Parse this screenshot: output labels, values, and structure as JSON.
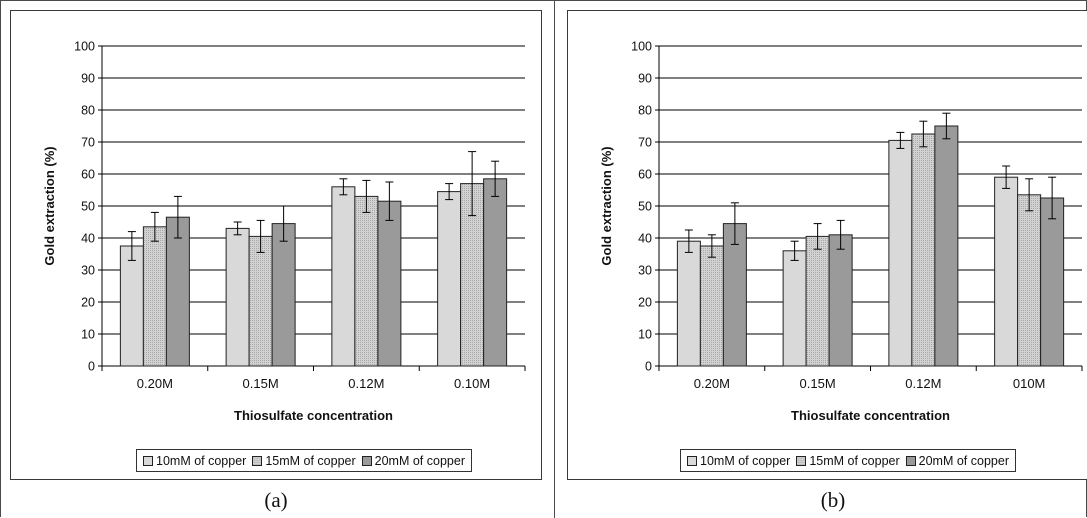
{
  "panels": [
    {
      "caption": "(a)",
      "legend": [
        "10mM of copper",
        "15mM of copper",
        "20mM of copper"
      ]
    },
    {
      "caption": "(b)",
      "legend": [
        "10mM of copper",
        "15mM of copper",
        "20mM of copper"
      ]
    }
  ],
  "colors": {
    "series_10mM": "#d9d9d9",
    "series_15mM": "#c8c8c8",
    "series_20mM": "#9a9a9a",
    "gridline": "#000000"
  },
  "chart_data": [
    {
      "type": "bar",
      "xlabel": "Thiosulfate concentration",
      "ylabel": "Gold extraction (%)",
      "ylim": [
        0,
        100
      ],
      "yticks": [
        0,
        10,
        20,
        30,
        40,
        50,
        60,
        70,
        80,
        90,
        100
      ],
      "grid": true,
      "legend_position": "bottom",
      "categories": [
        "0.20M",
        "0.15M",
        "0.12M",
        "0.10M"
      ],
      "series": [
        {
          "name": "10mM of copper",
          "values": [
            37.5,
            43.0,
            56.0,
            54.5
          ],
          "errors": [
            4.5,
            2.0,
            2.5,
            2.5
          ]
        },
        {
          "name": "15mM of copper",
          "values": [
            43.5,
            40.5,
            53.0,
            57.0
          ],
          "errors": [
            4.5,
            5.0,
            5.0,
            10.0
          ]
        },
        {
          "name": "20mM of copper",
          "values": [
            46.5,
            44.5,
            51.5,
            58.5
          ],
          "errors": [
            6.5,
            5.5,
            6.0,
            5.5
          ]
        }
      ]
    },
    {
      "type": "bar",
      "xlabel": "Thiosulfate concentration",
      "ylabel": "Gold extraction (%)",
      "ylim": [
        0,
        100
      ],
      "yticks": [
        0,
        10,
        20,
        30,
        40,
        50,
        60,
        70,
        80,
        90,
        100
      ],
      "grid": true,
      "legend_position": "bottom",
      "categories": [
        "0.20M",
        "0.15M",
        "0.12M",
        "010M"
      ],
      "series": [
        {
          "name": "10mM of copper",
          "values": [
            39.0,
            36.0,
            70.5,
            59.0
          ],
          "errors": [
            3.5,
            3.0,
            2.5,
            3.5
          ]
        },
        {
          "name": "15mM of copper",
          "values": [
            37.5,
            40.5,
            72.5,
            53.5
          ],
          "errors": [
            3.5,
            4.0,
            4.0,
            5.0
          ]
        },
        {
          "name": "20mM of copper",
          "values": [
            44.5,
            41.0,
            75.0,
            52.5
          ],
          "errors": [
            6.5,
            4.5,
            4.0,
            6.5
          ]
        }
      ]
    }
  ]
}
